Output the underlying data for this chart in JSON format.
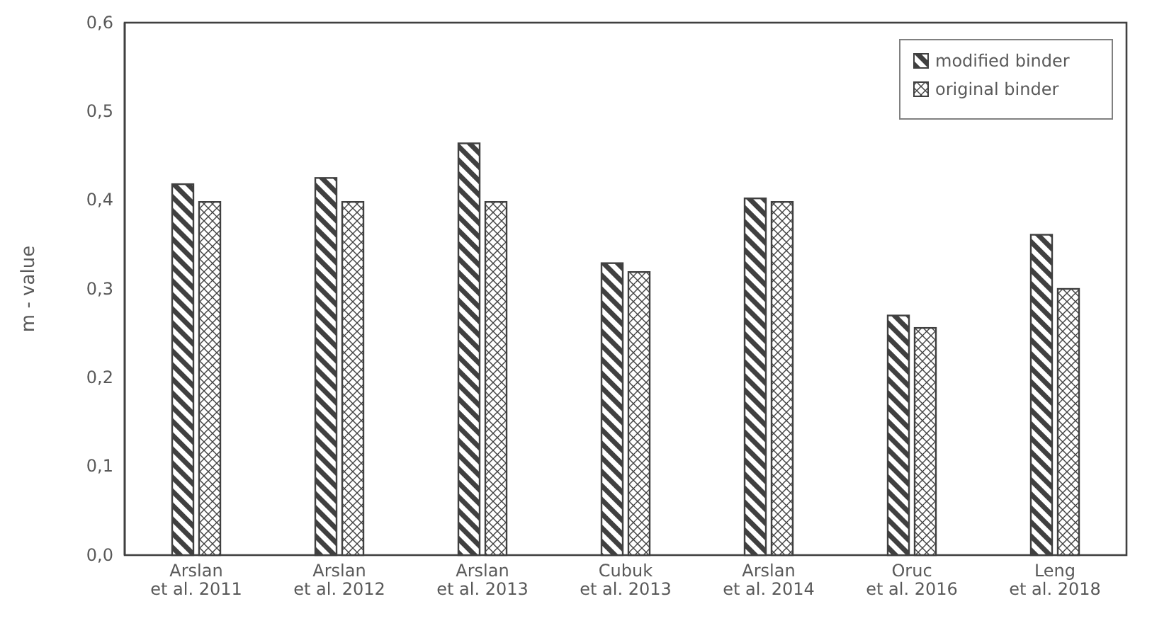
{
  "chart_data": {
    "type": "bar",
    "ylabel": "m - value",
    "categories": [
      "Arslan et al. 2011",
      "Arslan et al. 2012",
      "Arslan et al. 2013",
      "Cubuk et al. 2013",
      "Arslan et al. 2014",
      "Oruc et al. 2016",
      "Leng et al. 2018"
    ],
    "series": [
      {
        "name": "modified binder",
        "color": "#404040",
        "values": [
          0.418,
          0.425,
          0.464,
          0.329,
          0.402,
          0.27,
          0.361
        ]
      },
      {
        "name": "original binder",
        "color": "#404040",
        "values": [
          0.398,
          0.398,
          0.398,
          0.319,
          0.398,
          0.256,
          0.3
        ]
      }
    ],
    "ylim": [
      0,
      0.6
    ],
    "yticks": [
      {
        "value": 0,
        "label": "0,0"
      },
      {
        "value": 0.1,
        "label": "0,1"
      },
      {
        "value": 0.2,
        "label": "0,2"
      },
      {
        "value": 0.3,
        "label": "0,3"
      },
      {
        "value": 0.4,
        "label": "0,4"
      },
      {
        "value": 0.5,
        "label": "0,5"
      },
      {
        "value": 0.6,
        "label": "0,6"
      }
    ],
    "grid": false,
    "legend": "top right"
  }
}
